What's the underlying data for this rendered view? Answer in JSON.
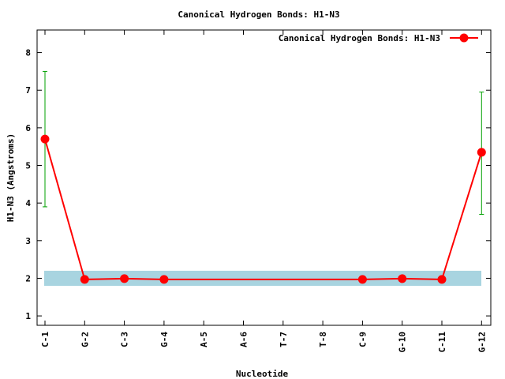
{
  "chart_data": {
    "type": "line",
    "title": "Canonical Hydrogen Bonds: H1-N3",
    "xlabel": "Nucleotide",
    "ylabel": "H1-N3 (Angstroms)",
    "categories": [
      "C-1",
      "G-2",
      "C-3",
      "G-4",
      "A-5",
      "A-6",
      "T-7",
      "T-8",
      "C-9",
      "G-10",
      "C-11",
      "G-12"
    ],
    "yticks": [
      1,
      2,
      3,
      4,
      5,
      6,
      7,
      8
    ],
    "ylim": [
      0.75,
      8.6
    ],
    "legend": {
      "position": "top-right",
      "label": "Canonical Hydrogen Bonds: H1-N3"
    },
    "reference_band": {
      "low": 1.8,
      "high": 2.2,
      "color": "#a8d4e0"
    },
    "series": [
      {
        "name": "Canonical Hydrogen Bonds: H1-N3",
        "color": "#ff0000",
        "points": [
          {
            "x": "C-1",
            "y": 5.7,
            "err_low": 3.9,
            "err_high": 7.5
          },
          {
            "x": "G-2",
            "y": 1.97
          },
          {
            "x": "C-3",
            "y": 1.99
          },
          {
            "x": "G-4",
            "y": 1.97
          },
          {
            "x": "C-9",
            "y": 1.97
          },
          {
            "x": "G-10",
            "y": 1.99
          },
          {
            "x": "C-11",
            "y": 1.97
          },
          {
            "x": "G-12",
            "y": 5.35,
            "err_low": 3.7,
            "err_high": 6.95
          }
        ]
      }
    ],
    "errorbar_color": "#00a000"
  }
}
